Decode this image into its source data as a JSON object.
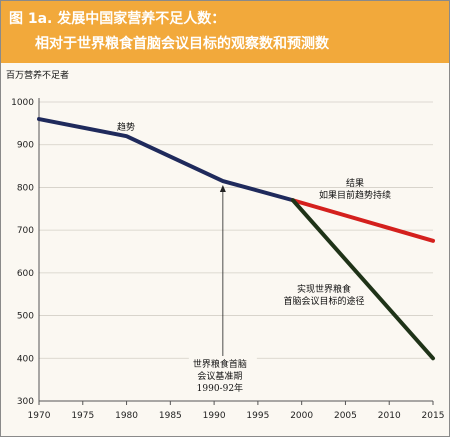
{
  "header": {
    "title_line1": "图 1a. 发展中国家营养不足人数：",
    "title_line2": "相对于世界粮食首脑会议目标的观察数和预测数"
  },
  "colors": {
    "header_bg": "#f2a93b",
    "trend_line": "#1f2a5c",
    "projection_line": "#d4201d",
    "target_line": "#1f3318"
  },
  "chart_data": {
    "type": "line",
    "ylabel": "百万营养不足者",
    "xlim": [
      1970,
      2015
    ],
    "ylim": [
      300,
      1000
    ],
    "xticks": [
      1970,
      1975,
      1980,
      1985,
      1990,
      1995,
      2000,
      2005,
      2010,
      2015
    ],
    "yticks": [
      300,
      400,
      500,
      600,
      700,
      800,
      900,
      1000
    ],
    "series": [
      {
        "name": "趋势",
        "color": "#1f2a5c",
        "x": [
          1970,
          1980,
          1991,
          1999
        ],
        "y": [
          960,
          920,
          815,
          770
        ]
      },
      {
        "name": "结果\n如果目前趋势持续",
        "color": "#d4201d",
        "x": [
          1999,
          2015
        ],
        "y": [
          770,
          675
        ]
      },
      {
        "name": "实现世界粮食\n首脑会议目标的途径",
        "color": "#1f3318",
        "x": [
          1999,
          2015
        ],
        "y": [
          770,
          400
        ]
      }
    ],
    "annotations": [
      {
        "text": "世界粮食首脑\n会议基准期\n1990-92年",
        "x": 1991,
        "arrow_to_y": 815
      }
    ]
  }
}
